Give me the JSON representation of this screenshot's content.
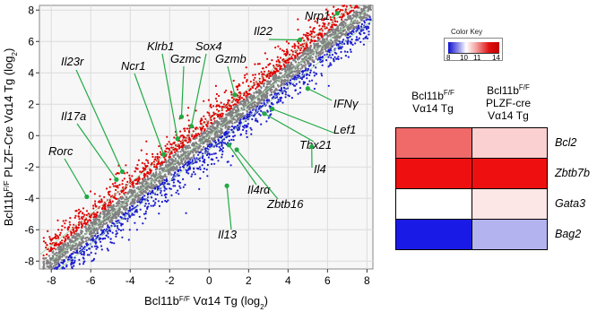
{
  "chart_data": [
    {
      "type": "scatter",
      "xlabel": {
        "prefix": "Bcl11b",
        "sup": "F/F",
        "main": " Vα14 Tg (log",
        "sub": "2",
        "suffix": ")"
      },
      "ylabel": {
        "prefix": "Bcl11b",
        "sup": "F/F",
        "main": " PLZF-Cre Vα14 Tg (log",
        "sub": "2",
        "suffix": ")"
      },
      "xlim": [
        -8.6,
        8.3
      ],
      "ylim": [
        -8.5,
        8.3
      ],
      "xticks": [
        -8,
        -6,
        -4,
        -2,
        0,
        2,
        4,
        6,
        8
      ],
      "yticks": [
        -8,
        -6,
        -4,
        -2,
        0,
        2,
        4,
        6,
        8
      ],
      "grid": true,
      "series": [
        {
          "color": "#e00000"
        },
        {
          "color": "#808080"
        },
        {
          "color": "#1a1ad0"
        }
      ],
      "highlight_color": "#22aa44",
      "annotations": [
        {
          "label": "Nrp1",
          "point": [
            6.5,
            7.8
          ]
        },
        {
          "label": "Il22",
          "point": [
            4.6,
            6.1
          ]
        },
        {
          "label": "Klrb1",
          "point": [
            -1.6,
            -0.2
          ]
        },
        {
          "label": "Gzmc",
          "point": [
            -1.4,
            1.2
          ]
        },
        {
          "label": "Sox4",
          "point": [
            -0.9,
            0.6
          ]
        },
        {
          "label": "Gzmb",
          "point": [
            1.3,
            2.6
          ]
        },
        {
          "label": "Il23r",
          "point": [
            -4.4,
            -2.3
          ]
        },
        {
          "label": "Ncr1",
          "point": [
            -2.3,
            -1.2
          ]
        },
        {
          "label": "Il17a",
          "point": [
            -4.7,
            -2.8
          ]
        },
        {
          "label": "Rorc",
          "point": [
            -6.2,
            -3.9
          ]
        },
        {
          "label": "IFNγ",
          "point": [
            5.0,
            3.0
          ]
        },
        {
          "label": "Lef1",
          "point": [
            3.2,
            1.7
          ]
        },
        {
          "label": "Tbx21",
          "point": [
            2.8,
            1.4
          ]
        },
        {
          "label": "Il4",
          "point": [
            5.2,
            -0.7
          ]
        },
        {
          "label": "Il4rα",
          "point": [
            1.0,
            -0.6
          ]
        },
        {
          "label": "Zbtb16",
          "point": [
            1.4,
            -0.9
          ]
        },
        {
          "label": "Il13",
          "point": [
            0.9,
            -3.2
          ]
        }
      ]
    },
    {
      "type": "heatmap",
      "color_key": {
        "title": "Color Key",
        "ticks": [
          "8",
          "10",
          "11",
          "14"
        ],
        "min": 8,
        "max": 14
      },
      "columns": [
        {
          "line1": "Bcl11b",
          "sup": "F/F",
          "line2": "Vα14 Tg",
          "line3": ""
        },
        {
          "line1": "Bcl11b",
          "sup": "F/F",
          "line2": "PLZF-cre",
          "line3": "Vα14 Tg"
        }
      ],
      "rows": [
        "Bcl2",
        "Zbtb7b",
        "Gata3",
        "Bag2"
      ],
      "cell_colors": [
        [
          "#f06a6a",
          "#fbd0d0"
        ],
        [
          "#ee1010",
          "#ee1010"
        ],
        [
          "#ffffff",
          "#fde6e6"
        ],
        [
          "#1a1ae6",
          "#b3b3f0"
        ]
      ]
    }
  ]
}
